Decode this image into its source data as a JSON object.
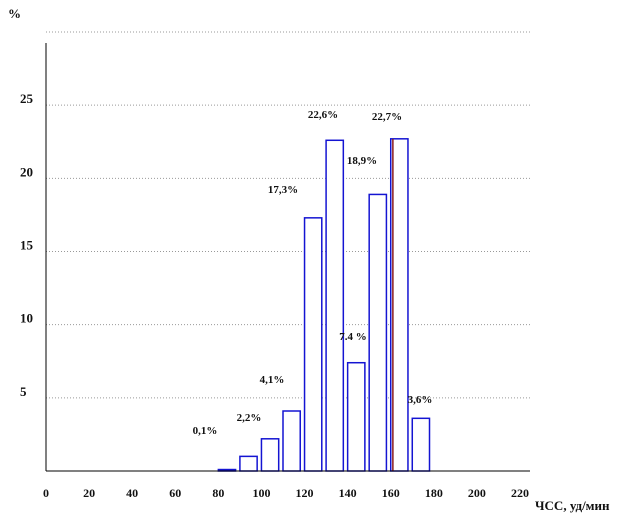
{
  "chart_data": {
    "type": "bar",
    "title": "",
    "xlabel": "ЧСС, уд/мин",
    "ylabel": "%",
    "xlim": [
      0,
      220
    ],
    "ylim": [
      0,
      30
    ],
    "x_ticks": [
      "0",
      "20",
      "40",
      "60",
      "80",
      "100",
      "120",
      "140",
      "160",
      "180",
      "200",
      "220"
    ],
    "y_ticks": [
      "5",
      "10",
      "15",
      "20",
      "25"
    ],
    "bin_width": 8,
    "bars": [
      {
        "x_start": 80,
        "value": 0.1,
        "label": "0,1%"
      },
      {
        "x_start": 90,
        "value": 1.0,
        "label": ""
      },
      {
        "x_start": 100,
        "value": 2.2,
        "label": "2,2%"
      },
      {
        "x_start": 110,
        "value": 4.1,
        "label": "4,1%"
      },
      {
        "x_start": 120,
        "value": 17.3,
        "label": "17,3%"
      },
      {
        "x_start": 130,
        "value": 22.6,
        "label": "22,6%"
      },
      {
        "x_start": 140,
        "value": 7.4,
        "label": "7.4 %"
      },
      {
        "x_start": 150,
        "value": 18.9,
        "label": "18,9%"
      },
      {
        "x_start": 160,
        "value": 22.7,
        "label": "22,7%"
      },
      {
        "x_start": 170,
        "value": 3.6,
        "label": "3,6%"
      }
    ],
    "marker_line_x": 161,
    "grid": "horizontal dotted",
    "colors": {
      "bar": "#1414d2",
      "marker": "#8a1a1a",
      "grid": "#999999",
      "axis": "#000000"
    }
  }
}
